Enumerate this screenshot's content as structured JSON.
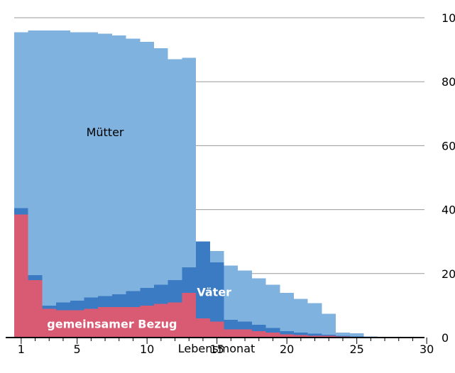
{
  "chart_data": {
    "type": "bar",
    "stacked": true,
    "x": [
      1,
      2,
      3,
      4,
      5,
      6,
      7,
      8,
      9,
      10,
      11,
      12,
      13,
      14,
      15,
      16,
      17,
      18,
      19,
      20,
      21,
      22,
      23,
      24,
      25,
      26,
      27,
      28,
      29,
      30
    ],
    "xlabel": "Lebensmonat",
    "xticks": [
      1,
      5,
      10,
      15,
      20,
      25,
      30
    ],
    "ylim": [
      0,
      100
    ],
    "yticks": [
      0,
      20,
      40,
      60,
      80,
      100
    ],
    "y_axis_position": "right",
    "grid": "horizontal",
    "colors": {
      "muetter": "#80b2df",
      "vaeter": "#3b7bc3",
      "gemeinsam": "#d95b73",
      "grid": "#999999",
      "axis": "#000000"
    },
    "annotations": [
      {
        "text": "Mütter",
        "series": "muetter",
        "x": 7,
        "y": 63,
        "color": "#000000"
      },
      {
        "text": "Väter",
        "series": "vaeter",
        "x": 14.8,
        "y": 13,
        "color": "#ffffff"
      },
      {
        "text": "gemeinsamer Bezug",
        "series": "gemeinsam",
        "x": 7.5,
        "y": 3,
        "color": "#ffffff"
      }
    ],
    "series": [
      {
        "key": "gemeinsam",
        "values": [
          38.5,
          18,
          9,
          8.5,
          8.5,
          9,
          9.5,
          9.5,
          9.5,
          10,
          10.5,
          11,
          14,
          6,
          5,
          2.5,
          2.5,
          2,
          1.5,
          1,
          0.8,
          0.6,
          0.5,
          0.3,
          0.2,
          0.1,
          0,
          0,
          0,
          0
        ]
      },
      {
        "key": "vaeter",
        "values": [
          2,
          1.5,
          1,
          2.5,
          3,
          3.5,
          3.5,
          4,
          5,
          5.5,
          6,
          7,
          8,
          24,
          18.5,
          3,
          2.5,
          2,
          1.5,
          1,
          0.8,
          0.6,
          0.4,
          0.2,
          0.1,
          0,
          0,
          0,
          0,
          0
        ]
      },
      {
        "key": "muetter",
        "values": [
          55,
          76.5,
          86,
          85,
          84,
          83,
          82,
          81,
          79,
          77,
          74,
          69,
          65.5,
          0,
          3.5,
          17,
          16,
          14.5,
          13.5,
          12,
          10.5,
          9.5,
          6.5,
          1,
          1,
          0.2,
          0,
          0,
          0,
          0
        ]
      }
    ]
  }
}
